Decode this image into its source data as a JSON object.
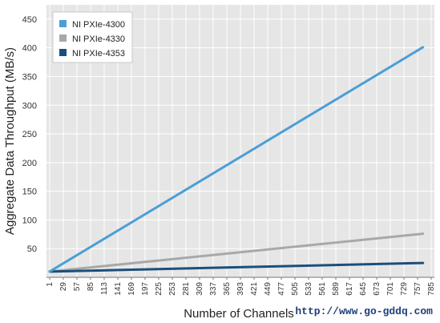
{
  "chart_data": {
    "type": "line",
    "title": "",
    "xlabel": "Number of Channels",
    "ylabel": "Aggregate Data Throughput (MB/s)",
    "ylim": [
      0,
      475
    ],
    "xlim": [
      1,
      785
    ],
    "yticks": [
      50,
      100,
      150,
      200,
      250,
      300,
      350,
      400,
      450
    ],
    "xticks": [
      1,
      29,
      57,
      85,
      113,
      141,
      169,
      197,
      225,
      253,
      281,
      309,
      337,
      365,
      393,
      421,
      449,
      477,
      505,
      533,
      561,
      589,
      617,
      645,
      673,
      701,
      729,
      757,
      785
    ],
    "grid": true,
    "legend": "top-left",
    "series": [
      {
        "name": "NI PXIe-4300",
        "color": "#4a9fd6",
        "x": [
          1,
          768
        ],
        "y": [
          10,
          401
        ]
      },
      {
        "name": "NI PXIe-4330",
        "color": "#a8a8a8",
        "x": [
          1,
          768
        ],
        "y": [
          10,
          76
        ]
      },
      {
        "name": "NI PXIe-4353",
        "color": "#1b4f7a",
        "x": [
          1,
          768
        ],
        "y": [
          10,
          25
        ]
      }
    ]
  },
  "watermark": "http://www.go-gddq.com"
}
